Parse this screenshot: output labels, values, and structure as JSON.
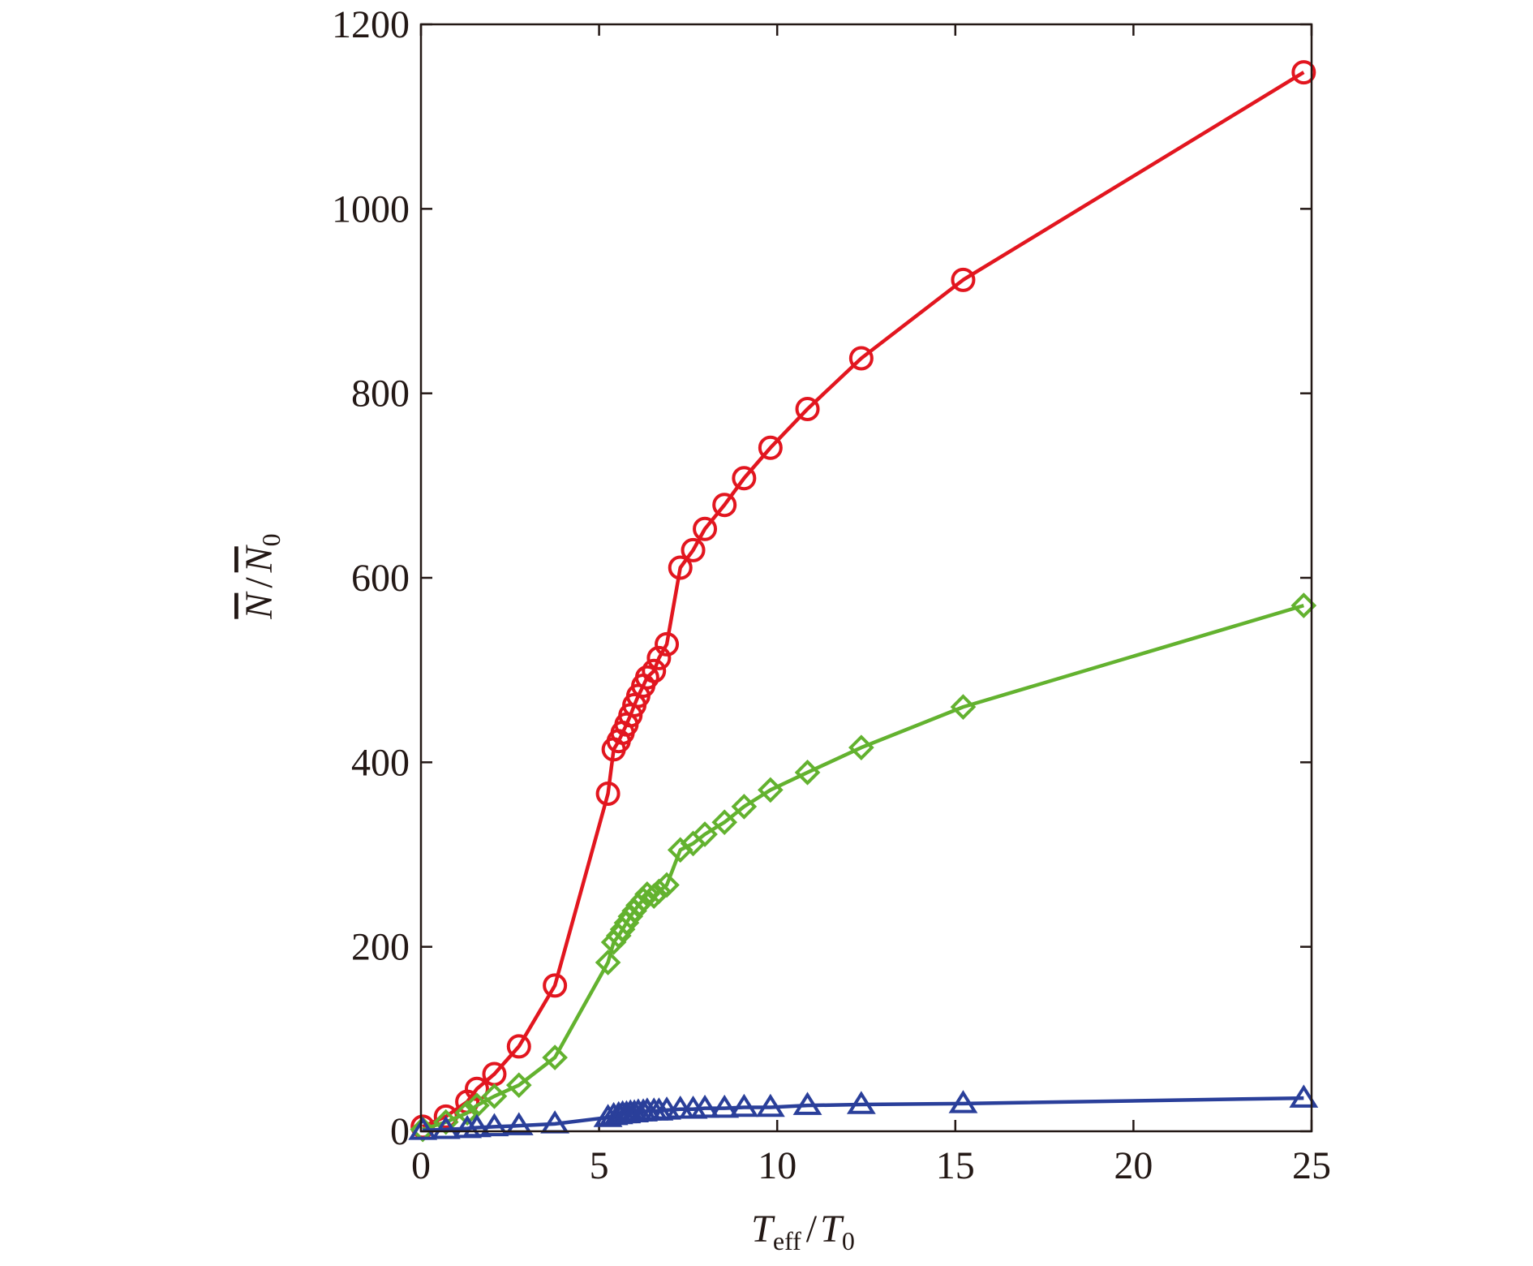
{
  "chart_data": {
    "type": "line",
    "xlabel": [
      "T",
      "eff",
      "/",
      "T",
      "0"
    ],
    "ylabel": [
      "N",
      "/",
      "N",
      "0"
    ],
    "xlim": [
      0,
      25
    ],
    "xticks": [
      0,
      5,
      10,
      15,
      20,
      25
    ],
    "ylim": [
      0,
      1200
    ],
    "yticks": [
      0,
      200,
      400,
      600,
      800,
      1000,
      1200
    ],
    "x": [
      0.05,
      0.7,
      1.3,
      1.57,
      2.06,
      2.75,
      3.76,
      5.25,
      5.41,
      5.55,
      5.66,
      5.77,
      5.88,
      5.99,
      6.1,
      6.24,
      6.35,
      6.54,
      6.68,
      6.9,
      7.28,
      7.64,
      7.97,
      8.52,
      9.07,
      9.81,
      10.85,
      12.36,
      15.22,
      24.78
    ],
    "series": [
      {
        "color": "#e2161f",
        "marker": "circle",
        "values": [
          5,
          16,
          32,
          46,
          62,
          92,
          158,
          366,
          414,
          423,
          432,
          441,
          451,
          462,
          472,
          483,
          492,
          499,
          513,
          528,
          611,
          630,
          653,
          679,
          708,
          741,
          783,
          838,
          923,
          1148
        ]
      },
      {
        "color": "#63b22f",
        "marker": "diamond",
        "values": [
          2,
          10,
          20,
          28,
          38,
          50,
          80,
          183,
          205,
          212,
          219,
          226,
          233,
          239,
          245,
          251,
          257,
          255,
          260,
          267,
          305,
          312,
          322,
          335,
          352,
          370,
          389,
          416,
          460,
          570
        ]
      },
      {
        "color": "#2a3f9a",
        "marker": "triangle",
        "values": [
          1,
          2,
          3,
          4,
          5,
          6,
          8,
          15,
          17,
          18,
          19,
          19,
          20,
          20,
          21,
          21,
          22,
          22,
          22,
          23,
          24,
          24,
          25,
          25,
          26,
          26,
          28,
          29,
          30,
          36
        ]
      }
    ]
  }
}
